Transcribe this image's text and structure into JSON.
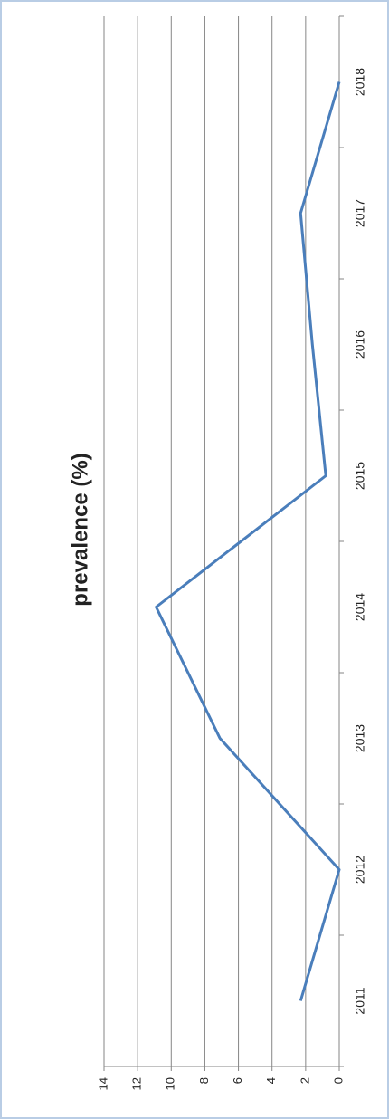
{
  "chart_data": {
    "type": "line",
    "title": "prevalence (%)",
    "categories": [
      "2011",
      "2012",
      "2013",
      "2014",
      "2015",
      "2016",
      "2017",
      "2018"
    ],
    "series": [
      {
        "name": "prevalence (%)",
        "color": "#4a7ebb",
        "values": [
          2.3,
          0,
          7.1,
          10.9,
          0.8,
          1.6,
          2.3,
          0
        ]
      }
    ],
    "ylim": [
      0,
      14
    ],
    "yticks": [
      0,
      2,
      4,
      6,
      8,
      10,
      12,
      14
    ],
    "grid": true
  }
}
